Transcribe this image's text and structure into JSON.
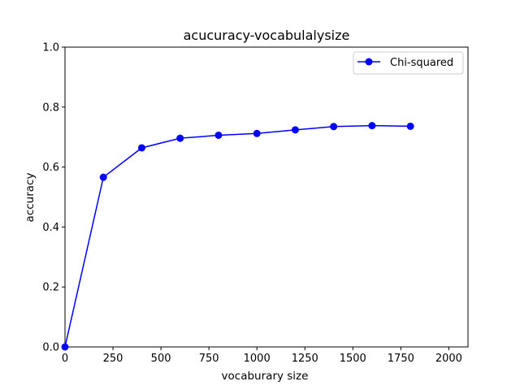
{
  "chart_data": {
    "type": "line",
    "title": "acucuracy-vocabulalysize",
    "xlabel": "vocaburary size",
    "ylabel": "accuracy",
    "xlim": [
      0,
      2100
    ],
    "ylim": [
      0.0,
      1.0
    ],
    "xticks": [
      0,
      250,
      500,
      750,
      1000,
      1250,
      1500,
      1750,
      2000
    ],
    "xtick_labels": [
      "0",
      "250",
      "500",
      "750",
      "1000",
      "1250",
      "1500",
      "1750",
      "2000"
    ],
    "yticks": [
      0.0,
      0.2,
      0.4,
      0.6,
      0.8,
      1.0
    ],
    "ytick_labels": [
      "0.0",
      "0.2",
      "0.4",
      "0.6",
      "0.8",
      "1.0"
    ],
    "grid": false,
    "legend_position": "top-right",
    "series": [
      {
        "name": "Chi-squared",
        "color": "#0000ff",
        "marker": "circle",
        "x": [
          0,
          200,
          400,
          600,
          800,
          1000,
          1200,
          1400,
          1600,
          1800
        ],
        "y": [
          0.0,
          0.566,
          0.664,
          0.696,
          0.706,
          0.712,
          0.724,
          0.735,
          0.738,
          0.736
        ]
      }
    ]
  }
}
